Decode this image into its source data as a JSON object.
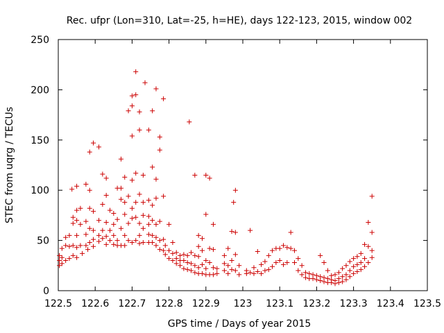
{
  "chart_data": {
    "type": "scatter",
    "title": "Rec. ufpr (Lon=310, Lat=-25, h=HE), days 122-123, 2015, window 002",
    "xlabel": "GPS time / Days of year 2015",
    "ylabel": "STEC from uqrg / TECUs",
    "xlim": [
      122.5,
      123.5
    ],
    "ylim": [
      0,
      250
    ],
    "xticks": [
      "122.5",
      "122.6",
      "122.7",
      "122.8",
      "122.9",
      "123",
      "123.1",
      "123.2",
      "123.3",
      "123.4",
      "123.5"
    ],
    "yticks": [
      "0",
      "50",
      "100",
      "150",
      "200",
      "250"
    ],
    "grid": false,
    "marker": "+",
    "color": "#cc0000",
    "points": [
      [
        122.503,
        35
      ],
      [
        122.503,
        30
      ],
      [
        122.503,
        25
      ],
      [
        122.51,
        42
      ],
      [
        122.51,
        33
      ],
      [
        122.51,
        27
      ],
      [
        122.52,
        53
      ],
      [
        122.52,
        45
      ],
      [
        122.52,
        30
      ],
      [
        122.53,
        55
      ],
      [
        122.53,
        44
      ],
      [
        122.53,
        32
      ],
      [
        122.537,
        101
      ],
      [
        122.54,
        73
      ],
      [
        122.54,
        67
      ],
      [
        122.54,
        45
      ],
      [
        122.54,
        35
      ],
      [
        122.55,
        104
      ],
      [
        122.55,
        80
      ],
      [
        122.55,
        70
      ],
      [
        122.55,
        55
      ],
      [
        122.55,
        43
      ],
      [
        122.55,
        33
      ],
      [
        122.56,
        82
      ],
      [
        122.56,
        66
      ],
      [
        122.56,
        45
      ],
      [
        122.565,
        37
      ],
      [
        122.575,
        106
      ],
      [
        122.575,
        69
      ],
      [
        122.575,
        56
      ],
      [
        122.575,
        45
      ],
      [
        122.58,
        41
      ],
      [
        122.585,
        138
      ],
      [
        122.585,
        100
      ],
      [
        122.585,
        82
      ],
      [
        122.585,
        62
      ],
      [
        122.585,
        48
      ],
      [
        122.595,
        147
      ],
      [
        122.595,
        79
      ],
      [
        122.595,
        60
      ],
      [
        122.595,
        51
      ],
      [
        122.595,
        44
      ],
      [
        122.61,
        143
      ],
      [
        122.61,
        70
      ],
      [
        122.61,
        55
      ],
      [
        122.61,
        49
      ],
      [
        122.62,
        116
      ],
      [
        122.62,
        86
      ],
      [
        122.62,
        60
      ],
      [
        122.62,
        52
      ],
      [
        122.63,
        112
      ],
      [
        122.63,
        95
      ],
      [
        122.63,
        68
      ],
      [
        122.63,
        54
      ],
      [
        122.63,
        46
      ],
      [
        122.64,
        80
      ],
      [
        122.64,
        60
      ],
      [
        122.64,
        50
      ],
      [
        122.65,
        77
      ],
      [
        122.65,
        66
      ],
      [
        122.65,
        55
      ],
      [
        122.65,
        46
      ],
      [
        122.66,
        102
      ],
      [
        122.66,
        71
      ],
      [
        122.66,
        50
      ],
      [
        122.66,
        45
      ],
      [
        122.67,
        131
      ],
      [
        122.67,
        102
      ],
      [
        122.67,
        91
      ],
      [
        122.67,
        62
      ],
      [
        122.67,
        45
      ],
      [
        122.68,
        113
      ],
      [
        122.68,
        88
      ],
      [
        122.68,
        76
      ],
      [
        122.68,
        55
      ],
      [
        122.68,
        45
      ],
      [
        122.69,
        179
      ],
      [
        122.69,
        94
      ],
      [
        122.69,
        67
      ],
      [
        122.69,
        50
      ],
      [
        122.7,
        194
      ],
      [
        122.7,
        184
      ],
      [
        122.7,
        154
      ],
      [
        122.7,
        110
      ],
      [
        122.7,
        82
      ],
      [
        122.7,
        72
      ],
      [
        122.7,
        48
      ],
      [
        122.71,
        218
      ],
      [
        122.71,
        195
      ],
      [
        122.71,
        117
      ],
      [
        122.71,
        88
      ],
      [
        122.71,
        73
      ],
      [
        122.71,
        50
      ],
      [
        122.72,
        178
      ],
      [
        122.72,
        160
      ],
      [
        122.72,
        96
      ],
      [
        122.72,
        67
      ],
      [
        122.72,
        55
      ],
      [
        122.72,
        47
      ],
      [
        122.73,
        115
      ],
      [
        122.73,
        88
      ],
      [
        122.73,
        75
      ],
      [
        122.73,
        62
      ],
      [
        122.73,
        48
      ],
      [
        122.735,
        207
      ],
      [
        122.745,
        160
      ],
      [
        122.745,
        90
      ],
      [
        122.745,
        74
      ],
      [
        122.745,
        66
      ],
      [
        122.745,
        56
      ],
      [
        122.745,
        48
      ],
      [
        122.755,
        179
      ],
      [
        122.755,
        123
      ],
      [
        122.755,
        85
      ],
      [
        122.755,
        70
      ],
      [
        122.755,
        55
      ],
      [
        122.755,
        48
      ],
      [
        122.765,
        201
      ],
      [
        122.765,
        111
      ],
      [
        122.765,
        92
      ],
      [
        122.765,
        66
      ],
      [
        122.765,
        53
      ],
      [
        122.765,
        45
      ],
      [
        122.775,
        153
      ],
      [
        122.775,
        140
      ],
      [
        122.775,
        69
      ],
      [
        122.775,
        50
      ],
      [
        122.775,
        41
      ],
      [
        122.785,
        191
      ],
      [
        122.785,
        94
      ],
      [
        122.785,
        51
      ],
      [
        122.785,
        40
      ],
      [
        122.79,
        45
      ],
      [
        122.79,
        36
      ],
      [
        122.8,
        66
      ],
      [
        122.8,
        40
      ],
      [
        122.8,
        32
      ],
      [
        122.81,
        48
      ],
      [
        122.81,
        37
      ],
      [
        122.81,
        30
      ],
      [
        122.82,
        38
      ],
      [
        122.82,
        32
      ],
      [
        122.82,
        27
      ],
      [
        122.83,
        35
      ],
      [
        122.83,
        30
      ],
      [
        122.83,
        25
      ],
      [
        122.84,
        36
      ],
      [
        122.84,
        30
      ],
      [
        122.84,
        22
      ],
      [
        122.85,
        35
      ],
      [
        122.85,
        28
      ],
      [
        122.85,
        21
      ],
      [
        122.855,
        168
      ],
      [
        122.86,
        38
      ],
      [
        122.86,
        27
      ],
      [
        122.86,
        20
      ],
      [
        122.87,
        115
      ],
      [
        122.87,
        35
      ],
      [
        122.87,
        25
      ],
      [
        122.87,
        18
      ],
      [
        122.88,
        55
      ],
      [
        122.88,
        44
      ],
      [
        122.88,
        34
      ],
      [
        122.88,
        23
      ],
      [
        122.88,
        17
      ],
      [
        122.89,
        52
      ],
      [
        122.89,
        40
      ],
      [
        122.89,
        26
      ],
      [
        122.89,
        17
      ],
      [
        122.9,
        76
      ],
      [
        122.9,
        115
      ],
      [
        122.9,
        30
      ],
      [
        122.9,
        22
      ],
      [
        122.9,
        16
      ],
      [
        122.91,
        112
      ],
      [
        122.91,
        42
      ],
      [
        122.91,
        28
      ],
      [
        122.91,
        16
      ],
      [
        122.92,
        66
      ],
      [
        122.92,
        41
      ],
      [
        122.92,
        23
      ],
      [
        122.92,
        16
      ],
      [
        122.93,
        22
      ],
      [
        122.93,
        17
      ],
      [
        122.95,
        35
      ],
      [
        122.95,
        27
      ],
      [
        122.95,
        20
      ],
      [
        122.96,
        42
      ],
      [
        122.96,
        25
      ],
      [
        122.96,
        17
      ],
      [
        122.97,
        59
      ],
      [
        122.97,
        30
      ],
      [
        122.97,
        21
      ],
      [
        122.975,
        88
      ],
      [
        122.98,
        100
      ],
      [
        122.98,
        58
      ],
      [
        122.98,
        36
      ],
      [
        122.98,
        20
      ],
      [
        122.99,
        25
      ],
      [
        122.99,
        16
      ],
      [
        123.01,
        20
      ],
      [
        123.01,
        17
      ],
      [
        123.02,
        60
      ],
      [
        123.02,
        18
      ],
      [
        123.03,
        23
      ],
      [
        123.03,
        17
      ],
      [
        123.04,
        39
      ],
      [
        123.04,
        19
      ],
      [
        123.05,
        26
      ],
      [
        123.05,
        17
      ],
      [
        123.06,
        29
      ],
      [
        123.06,
        20
      ],
      [
        123.07,
        35
      ],
      [
        123.07,
        21
      ],
      [
        123.08,
        40
      ],
      [
        123.08,
        24
      ],
      [
        123.09,
        42
      ],
      [
        123.09,
        28
      ],
      [
        123.1,
        42
      ],
      [
        123.1,
        30
      ],
      [
        123.11,
        45
      ],
      [
        123.11,
        26
      ],
      [
        123.12,
        43
      ],
      [
        123.12,
        28
      ],
      [
        123.13,
        58
      ],
      [
        123.13,
        42
      ],
      [
        123.14,
        40
      ],
      [
        123.14,
        28
      ],
      [
        123.15,
        32
      ],
      [
        123.15,
        20
      ],
      [
        123.16,
        25
      ],
      [
        123.16,
        16
      ],
      [
        123.17,
        18
      ],
      [
        123.17,
        13
      ],
      [
        123.18,
        17
      ],
      [
        123.18,
        12
      ],
      [
        123.19,
        16
      ],
      [
        123.19,
        12
      ],
      [
        123.2,
        15
      ],
      [
        123.2,
        11
      ],
      [
        123.21,
        35
      ],
      [
        123.21,
        14
      ],
      [
        123.21,
        10
      ],
      [
        123.22,
        28
      ],
      [
        123.22,
        13
      ],
      [
        123.22,
        9
      ],
      [
        123.23,
        20
      ],
      [
        123.23,
        12
      ],
      [
        123.23,
        8
      ],
      [
        123.24,
        15
      ],
      [
        123.24,
        11
      ],
      [
        123.24,
        8
      ],
      [
        123.25,
        16
      ],
      [
        123.25,
        10
      ],
      [
        123.25,
        7
      ],
      [
        123.26,
        18
      ],
      [
        123.26,
        12
      ],
      [
        123.26,
        8
      ],
      [
        123.27,
        22
      ],
      [
        123.27,
        14
      ],
      [
        123.27,
        9
      ],
      [
        123.28,
        25
      ],
      [
        123.28,
        16
      ],
      [
        123.28,
        11
      ],
      [
        123.29,
        29
      ],
      [
        123.29,
        20
      ],
      [
        123.29,
        14
      ],
      [
        123.3,
        32
      ],
      [
        123.3,
        24
      ],
      [
        123.3,
        17
      ],
      [
        123.31,
        34
      ],
      [
        123.31,
        26
      ],
      [
        123.31,
        19
      ],
      [
        123.32,
        37
      ],
      [
        123.32,
        28
      ],
      [
        123.32,
        21
      ],
      [
        123.33,
        46
      ],
      [
        123.33,
        32
      ],
      [
        123.33,
        24
      ],
      [
        123.34,
        68
      ],
      [
        123.34,
        44
      ],
      [
        123.34,
        28
      ],
      [
        123.35,
        94
      ],
      [
        123.35,
        58
      ],
      [
        123.35,
        40
      ],
      [
        123.35,
        33
      ]
    ]
  }
}
